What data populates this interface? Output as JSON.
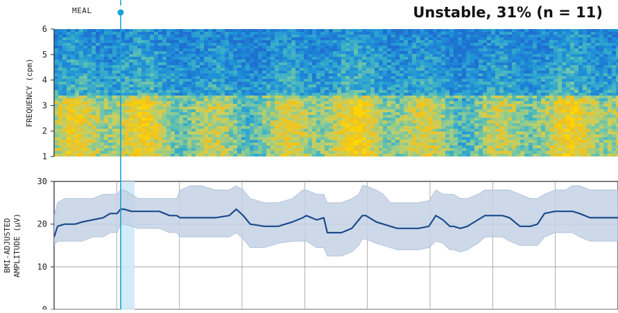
{
  "title": "Unstable, 31% (n = 11)",
  "meal_marker": {
    "label": "MEAL",
    "color": "#1aa3d9"
  },
  "chart_data": [
    {
      "type": "heatmap",
      "name": "spectrogram",
      "ylabel": "FREQUENCY (cpm)",
      "ylim": [
        1,
        6
      ],
      "yticks": [
        1,
        2,
        3,
        4,
        5,
        6
      ],
      "colorscale": [
        "#1f6fd0",
        "#1e90d8",
        "#3bb0c8",
        "#7cc8a0",
        "#c8d060",
        "#f0c020",
        "#ffd800"
      ],
      "description_bands": [
        {
          "range_cpm": [
            3.3,
            6
          ],
          "level": "low"
        },
        {
          "range_cpm": [
            1,
            3.3
          ],
          "level": "high"
        }
      ]
    },
    {
      "type": "area",
      "name": "amplitude",
      "ylabel": "BMI-ADJUSTED AMPLITUDE (μV)",
      "ylabel_lines": [
        "BMI-ADJUSTED",
        "AMPLITUDE (μV)"
      ],
      "ylim": [
        0,
        30
      ],
      "yticks": [
        0,
        10,
        20,
        30
      ],
      "grid": true,
      "x": [
        0,
        5,
        15,
        30,
        40,
        55,
        70,
        80,
        90,
        95,
        100,
        110,
        120,
        135,
        150,
        165,
        175,
        180,
        195,
        210,
        230,
        250,
        260,
        270,
        275,
        280,
        300,
        320,
        340,
        355,
        360,
        375,
        385,
        390,
        400,
        410,
        425,
        435,
        440,
        445,
        460,
        470,
        480,
        490,
        500,
        520,
        535,
        545,
        555,
        565,
        570,
        580,
        590,
        605,
        615,
        630,
        640,
        650,
        665,
        680,
        690,
        700,
        715,
        730,
        740,
        750,
        765,
        775,
        790,
        805
      ],
      "series": [
        {
          "mean": [
            17,
            19.5,
            20,
            20,
            20.5,
            21,
            21.5,
            22.5,
            22.5,
            23.5,
            23.5,
            23,
            23,
            23,
            23,
            22,
            22,
            21.5,
            21.5,
            21.5,
            21.5,
            22,
            23.5,
            22,
            21,
            20,
            19.5,
            19.5,
            20.5,
            21.5,
            22,
            21,
            21.5,
            18,
            18,
            18,
            19,
            21,
            22,
            22,
            20.5,
            20,
            19.5,
            19,
            19,
            19,
            19.5,
            22,
            21,
            19.5,
            19.5,
            19,
            19.5,
            21,
            22,
            22,
            22,
            21.5,
            19.5,
            19.5,
            20,
            22.5,
            23,
            23,
            23,
            22.5,
            21.5,
            21.5,
            21.5,
            21.5
          ],
          "upper": [
            22,
            25,
            26,
            26,
            26,
            26,
            27,
            27,
            27,
            28,
            28,
            27,
            26,
            26,
            26,
            26,
            26,
            28,
            29,
            29,
            28,
            28,
            29,
            28,
            27,
            26,
            25,
            25,
            26,
            28,
            28,
            27,
            27,
            25,
            25,
            25,
            26,
            27,
            29,
            29,
            28,
            27,
            25,
            25,
            25,
            25,
            25.5,
            28,
            27,
            27,
            27,
            26,
            26,
            27,
            28,
            28,
            28,
            28,
            27,
            26,
            26,
            27,
            28,
            28,
            29,
            29,
            28,
            28,
            28,
            28
          ],
          "lower": [
            15,
            16,
            16,
            16,
            16,
            17,
            17,
            18,
            18,
            20,
            20,
            19.5,
            19,
            19,
            19,
            18,
            18,
            17,
            17,
            17,
            17,
            17,
            18,
            16.5,
            15.5,
            14.5,
            14.5,
            15.5,
            16,
            16,
            16,
            14.5,
            14.5,
            12.5,
            12.5,
            12.5,
            13.5,
            15,
            16.5,
            16.5,
            15.5,
            15,
            14.5,
            14,
            14,
            14,
            14.5,
            16,
            15.5,
            14,
            14,
            13.5,
            14,
            15.5,
            17,
            17,
            17,
            16,
            15,
            15,
            15,
            17,
            18,
            18,
            18,
            17,
            16,
            16,
            16,
            16
          ]
        }
      ],
      "line_color": "#1a4a8a",
      "band_color": "#c5d3e6",
      "highlight_band": [
        95,
        115
      ]
    }
  ]
}
